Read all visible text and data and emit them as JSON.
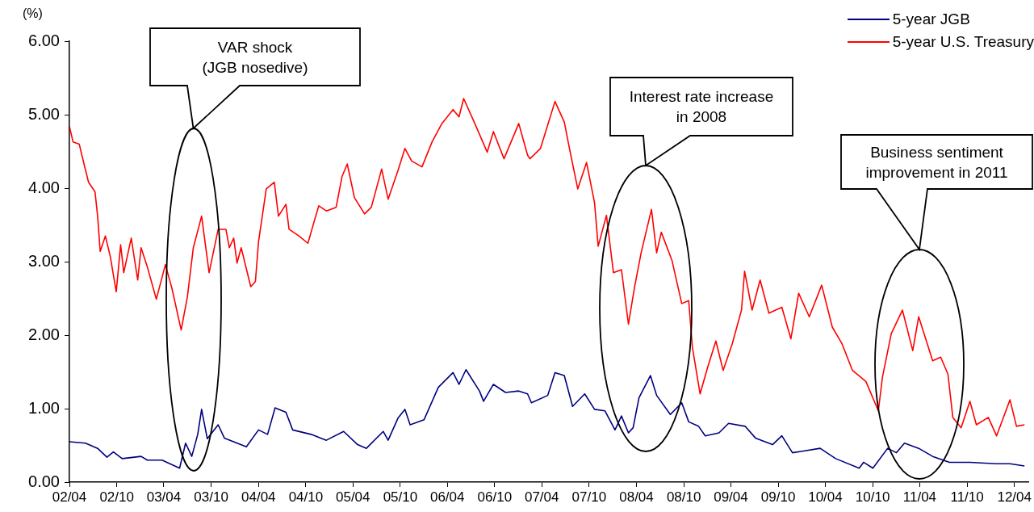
{
  "chart_data": {
    "type": "line",
    "ylabel": "(%)",
    "series": [
      {
        "name": "5-year JGB",
        "color": "#000080",
        "x": [
          "2002-04-01",
          "2002-06-02",
          "2002-07-19",
          "2002-08-24",
          "2002-09-18",
          "2002-10-22",
          "2003-01-03",
          "2003-01-27",
          "2003-03-25",
          "2003-06-01",
          "2003-06-24",
          "2003-07-18",
          "2003-08-10",
          "2003-08-25",
          "2003-09-16",
          "2003-10-28",
          "2003-11-21",
          "2004-02-14",
          "2004-04-01",
          "2004-05-06",
          "2004-06-04",
          "2004-07-16",
          "2004-08-11",
          "2004-10-21",
          "2004-12-19",
          "2005-02-24",
          "2005-04-19",
          "2005-05-23",
          "2005-07-27",
          "2005-08-15",
          "2005-09-22",
          "2005-10-19",
          "2005-11-08",
          "2006-01-01",
          "2006-02-25",
          "2006-04-23",
          "2006-05-16",
          "2006-06-12",
          "2006-08-03",
          "2006-08-19",
          "2006-09-26",
          "2006-11-12",
          "2007-01-02",
          "2007-02-05",
          "2007-02-20",
          "2007-04-24",
          "2007-05-22",
          "2007-06-27",
          "2007-07-29",
          "2007-09-14",
          "2007-10-22",
          "2007-12-01",
          "2008-01-09",
          "2008-02-03",
          "2008-03-01",
          "2008-03-19",
          "2008-04-11",
          "2008-05-25",
          "2008-06-18",
          "2008-08-10",
          "2008-09-23",
          "2008-10-20",
          "2008-11-27",
          "2008-12-23",
          "2009-02-14",
          "2009-03-23",
          "2009-05-26",
          "2009-07-05",
          "2009-09-09",
          "2009-10-15",
          "2009-11-25",
          "2010-01-02",
          "2010-03-12",
          "2010-05-11",
          "2010-08-10",
          "2010-08-27",
          "2010-10-02",
          "2010-11-28",
          "2011-01-01",
          "2011-02-01",
          "2011-03-28",
          "2011-05-21",
          "2011-07-25",
          "2011-10-12",
          "2012-01-23",
          "2012-03-15",
          "2012-05-10"
        ],
        "values": [
          0.55,
          0.53,
          0.46,
          0.34,
          0.41,
          0.32,
          0.35,
          0.3,
          0.3,
          0.19,
          0.53,
          0.35,
          0.65,
          0.99,
          0.59,
          0.78,
          0.6,
          0.48,
          0.71,
          0.65,
          1.01,
          0.95,
          0.71,
          0.65,
          0.57,
          0.69,
          0.51,
          0.46,
          0.69,
          0.57,
          0.87,
          0.99,
          0.78,
          0.85,
          1.29,
          1.49,
          1.33,
          1.53,
          1.24,
          1.1,
          1.33,
          1.22,
          1.24,
          1.2,
          1.08,
          1.18,
          1.49,
          1.45,
          1.03,
          1.2,
          0.99,
          0.97,
          0.71,
          0.9,
          0.67,
          0.74,
          1.15,
          1.45,
          1.18,
          0.92,
          1.08,
          0.82,
          0.76,
          0.63,
          0.67,
          0.8,
          0.76,
          0.6,
          0.51,
          0.63,
          0.4,
          0.42,
          0.46,
          0.32,
          0.19,
          0.27,
          0.19,
          0.46,
          0.4,
          0.53,
          0.46,
          0.35,
          0.27,
          0.27,
          0.25,
          0.25,
          0.22
        ]
      },
      {
        "name": "5-year U.S. Treasury",
        "color": "#ff0000",
        "x": [
          "2002-04-01",
          "2002-04-15",
          "2002-05-09",
          "2002-05-19",
          "2002-06-14",
          "2002-07-09",
          "2002-07-19",
          "2002-07-29",
          "2002-08-18",
          "2002-09-06",
          "2002-09-29",
          "2002-10-16",
          "2002-10-28",
          "2002-11-26",
          "2002-12-21",
          "2003-01-03",
          "2003-01-27",
          "2003-03-03",
          "2003-04-07",
          "2003-05-02",
          "2003-06-07",
          "2003-07-01",
          "2003-07-24",
          "2003-08-25",
          "2003-09-23",
          "2003-10-28",
          "2003-11-27",
          "2003-12-10",
          "2003-12-27",
          "2004-01-09",
          "2004-01-25",
          "2004-03-02",
          "2004-03-20",
          "2004-04-01",
          "2004-05-01",
          "2004-06-01",
          "2004-06-17",
          "2004-07-16",
          "2004-07-28",
          "2004-09-04",
          "2004-10-09",
          "2004-11-04",
          "2004-11-20",
          "2004-12-19",
          "2005-01-26",
          "2005-02-18",
          "2005-03-10",
          "2005-04-07",
          "2005-05-16",
          "2005-06-11",
          "2005-07-21",
          "2005-08-15",
          "2005-09-22",
          "2005-10-19",
          "2005-11-14",
          "2005-12-24",
          "2006-02-01",
          "2006-03-11",
          "2006-04-23",
          "2006-05-16",
          "2006-06-03",
          "2006-07-16",
          "2006-09-02",
          "2006-09-26",
          "2006-11-06",
          "2007-01-02",
          "2007-02-05",
          "2007-02-14",
          "2007-03-27",
          "2007-05-22",
          "2007-06-27",
          "2007-07-17",
          "2007-08-18",
          "2007-09-21",
          "2007-10-22",
          "2007-11-05",
          "2007-12-07",
          "2008-01-03",
          "2008-02-03",
          "2008-03-01",
          "2008-03-25",
          "2008-04-19",
          "2008-05-29",
          "2008-06-18",
          "2008-07-06",
          "2008-08-16",
          "2008-09-23",
          "2008-10-20",
          "2008-11-03",
          "2008-12-03",
          "2009-01-01",
          "2009-02-02",
          "2009-03-02",
          "2009-04-06",
          "2009-05-12",
          "2009-05-24",
          "2009-06-22",
          "2009-07-23",
          "2009-08-26",
          "2009-10-15",
          "2009-11-19",
          "2009-12-19",
          "2010-01-29",
          "2010-03-18",
          "2010-04-28",
          "2010-06-05",
          "2010-07-15",
          "2010-09-05",
          "2010-10-23",
          "2010-11-08",
          "2010-12-12",
          "2011-01-24",
          "2011-03-05",
          "2011-03-28",
          "2011-05-21",
          "2011-06-21",
          "2011-07-19",
          "2011-08-07",
          "2011-09-08",
          "2011-10-12",
          "2011-11-06",
          "2011-12-22",
          "2012-01-23",
          "2012-03-15",
          "2012-04-09",
          "2012-05-10"
        ],
        "values": [
          4.84,
          4.63,
          4.6,
          4.45,
          4.08,
          3.95,
          3.62,
          3.14,
          3.35,
          3.07,
          2.59,
          3.23,
          2.85,
          3.32,
          2.75,
          3.19,
          2.93,
          2.49,
          2.96,
          2.64,
          2.07,
          2.52,
          3.19,
          3.62,
          2.85,
          3.44,
          3.44,
          3.19,
          3.32,
          2.98,
          3.19,
          2.66,
          2.73,
          3.27,
          3.99,
          4.08,
          3.62,
          3.78,
          3.44,
          3.35,
          3.25,
          3.57,
          3.76,
          3.69,
          3.74,
          4.16,
          4.33,
          3.87,
          3.65,
          3.74,
          4.26,
          3.85,
          4.24,
          4.54,
          4.37,
          4.29,
          4.63,
          4.88,
          5.07,
          4.97,
          5.22,
          4.88,
          4.49,
          4.77,
          4.4,
          4.88,
          4.45,
          4.4,
          4.54,
          5.18,
          4.9,
          4.54,
          3.99,
          4.35,
          3.8,
          3.21,
          3.63,
          2.85,
          2.89,
          2.15,
          2.66,
          3.12,
          3.71,
          3.12,
          3.4,
          3.02,
          2.43,
          2.47,
          1.84,
          1.2,
          1.56,
          1.92,
          1.52,
          1.88,
          2.34,
          2.87,
          2.34,
          2.75,
          2.3,
          2.38,
          1.95,
          2.57,
          2.25,
          2.68,
          2.11,
          1.88,
          1.52,
          1.37,
          0.97,
          1.43,
          2.02,
          2.34,
          1.79,
          2.25,
          1.65,
          1.7,
          1.47,
          0.88,
          0.74,
          1.1,
          0.78,
          0.88,
          0.63,
          1.12,
          0.76,
          0.78
        ]
      }
    ],
    "xlim": [
      "2002-04-01",
      "2012-05-28"
    ],
    "xticks": [
      {
        "value": "2002-04-01",
        "label": "02/04"
      },
      {
        "value": "2002-10-01",
        "label": "02/10"
      },
      {
        "value": "2003-04-01",
        "label": "03/04"
      },
      {
        "value": "2003-10-01",
        "label": "03/10"
      },
      {
        "value": "2004-04-01",
        "label": "04/04"
      },
      {
        "value": "2004-10-01",
        "label": "04/10"
      },
      {
        "value": "2005-04-01",
        "label": "05/04"
      },
      {
        "value": "2005-10-01",
        "label": "05/10"
      },
      {
        "value": "2006-04-01",
        "label": "06/04"
      },
      {
        "value": "2006-10-01",
        "label": "06/10"
      },
      {
        "value": "2007-04-01",
        "label": "07/04"
      },
      {
        "value": "2007-10-01",
        "label": "07/10"
      },
      {
        "value": "2008-04-01",
        "label": "08/04"
      },
      {
        "value": "2008-10-01",
        "label": "08/10"
      },
      {
        "value": "2009-04-01",
        "label": "09/04"
      },
      {
        "value": "2009-10-01",
        "label": "09/10"
      },
      {
        "value": "2010-04-01",
        "label": "10/04"
      },
      {
        "value": "2010-10-01",
        "label": "10/10"
      },
      {
        "value": "2011-04-01",
        "label": "11/04"
      },
      {
        "value": "2011-10-01",
        "label": "11/10"
      },
      {
        "value": "2012-04-01",
        "label": "12/04"
      }
    ],
    "ylim": [
      0,
      6
    ],
    "yticks": [
      {
        "value": 0,
        "label": "0.00"
      },
      {
        "value": 1,
        "label": "1.00"
      },
      {
        "value": 2,
        "label": "2.00"
      },
      {
        "value": 3,
        "label": "3.00"
      },
      {
        "value": 4,
        "label": "4.00"
      },
      {
        "value": 5,
        "label": "5.00"
      },
      {
        "value": 6,
        "label": "6.00"
      }
    ],
    "legend": "top right",
    "annotations": [
      "VAR shock\n(JGB nosedive)",
      "Interest rate increase\nin 2008",
      "Business sentiment\nimprovement in 2011"
    ]
  }
}
